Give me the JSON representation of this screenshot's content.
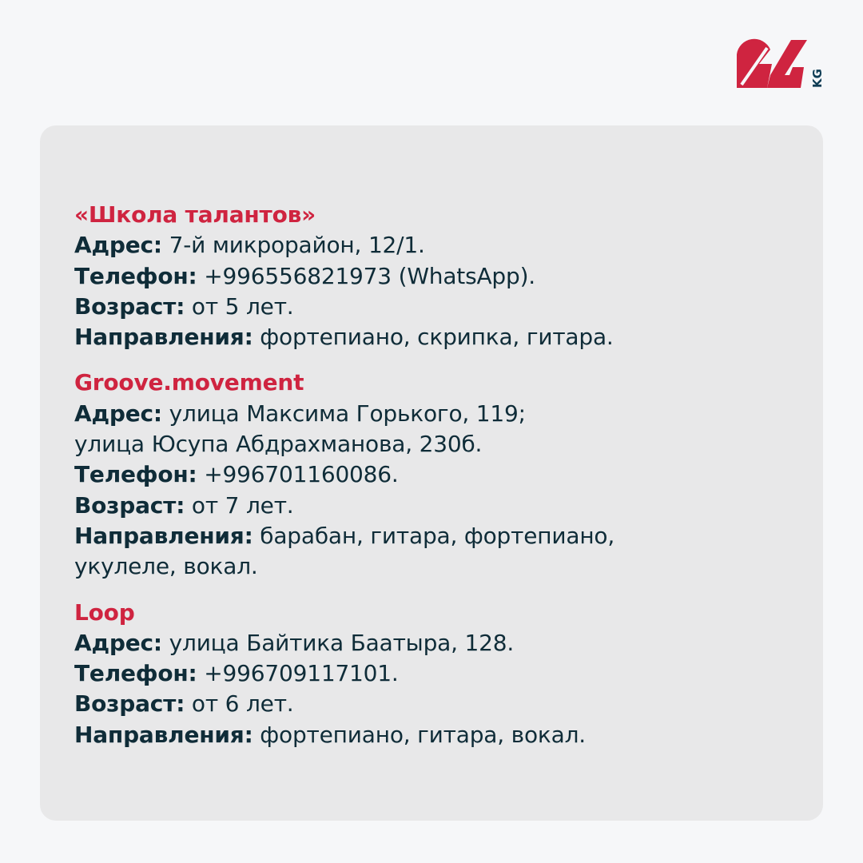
{
  "brand": {
    "logo_text": "24",
    "logo_suffix": "KG",
    "colors": {
      "red": "#cf2440",
      "dark": "#0f2c38"
    }
  },
  "sections": [
    {
      "title": "«Школа талантов»",
      "address_label": "Адрес:",
      "address": " 7-й микрорайон, 12/1.",
      "phone_label": "Телефон:",
      "phone": " +996556821973 (WhatsApp).",
      "age_label": "Возраст:",
      "age": " от 5 лет.",
      "directions_label": "Направления:",
      "directions": " фортепиано, скрипка, гитара."
    },
    {
      "title": "Groove.movement",
      "address_label": "Адрес:",
      "address": " улица Максима Горького, 119;",
      "address_line2": "улица Юсупа Абдрахманова, 230б.",
      "phone_label": "Телефон:",
      "phone": " +996701160086.",
      "age_label": "Возраст:",
      "age": " от 7 лет.",
      "directions_label": "Направления:",
      "directions": " барабан, гитара, фортепиано,",
      "directions_line2": "укулеле, вокал."
    },
    {
      "title": "Loop",
      "address_label": "Адрес:",
      "address": " улица Байтика Баатыра, 128.",
      "phone_label": "Телефон:",
      "phone": " +996709117101.",
      "age_label": "Возраст:",
      "age": " от 6 лет.",
      "directions_label": "Направления:",
      "directions": " фортепиано, гитара, вокал."
    }
  ]
}
